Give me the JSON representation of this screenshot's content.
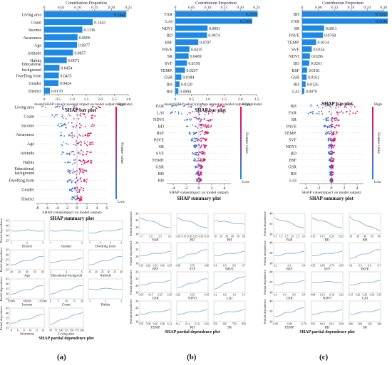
{
  "chart_data": [
    {
      "type": "bar",
      "panel": "a",
      "title": "SHAP bar plot",
      "top_axis_label": "Contribution Proportion",
      "top_ticks": [
        "0",
        "0.05",
        "0.10",
        "0.15",
        "0.20",
        "0.25"
      ],
      "top_max": 0.25,
      "bottom_ticks": [
        "0",
        "0.5",
        "1.0",
        "1.5",
        "2.0",
        "2.5",
        "3.0"
      ],
      "bottom_max": 3.0,
      "xlabel": "mean(|SHAP value|)  (average impact on model output magnitude)",
      "categories": [
        "Living area",
        "Count",
        "Income",
        "Awareness",
        "Age",
        "Attitude",
        "Habits",
        "Educational background",
        "Dwelling form",
        "Gender",
        "District"
      ],
      "values": [
        0.2442,
        0.1443,
        0.1136,
        0.099,
        0.0977,
        0.0857,
        0.0671,
        0.0454,
        0.0435,
        0.0424,
        0.017
      ],
      "value_labels": [
        "0.2442",
        "0.1443",
        "0.1136",
        "0.0990",
        "0.0977",
        "0.0857",
        "0.0671",
        "0.0454",
        "0.0435",
        "0.0424",
        "0.0170"
      ]
    },
    {
      "type": "bar",
      "panel": "b",
      "title": "SHAP bar plot",
      "top_axis_label": "Contribution Proportion",
      "top_ticks": [
        "0",
        "0.05",
        "0.10",
        "0.15",
        "0.20",
        "0.25"
      ],
      "top_max": 0.25,
      "bottom_ticks": [
        "0",
        "0.5",
        "1.0",
        "1.5",
        "2.0",
        "2.5"
      ],
      "bottom_max": 2.5,
      "xlabel": "mean(|SHAP value|)  (average impact on model output magnitude)",
      "categories": [
        "FAR",
        "LAI",
        "NDVI",
        "BD",
        "BSF",
        "PAVE",
        "SR",
        "SVF",
        "TEMP.",
        "GSR",
        "BH",
        "RH"
      ],
      "values": [
        0.2535,
        0.2366,
        0.0991,
        0.0974,
        0.0707,
        0.0435,
        0.0409,
        0.0358,
        0.0297,
        0.0184,
        0.0129,
        0.0094
      ],
      "value_labels": [
        "0.2535",
        "0.2366",
        "0.0991",
        "0.0974",
        "0.0707",
        "0.0435",
        "0.0409",
        "0.0358",
        "0.0297",
        "0.0184",
        "0.0129",
        "0.0094"
      ]
    },
    {
      "type": "bar",
      "panel": "c",
      "title": "SHAP bar plot",
      "top_axis_label": "Contribution Proportion",
      "top_ticks": [
        "0",
        "0.06",
        "0.12",
        "0.18",
        "0.24",
        "0.30"
      ],
      "top_max": 0.3,
      "bottom_ticks": [],
      "bottom_max": 0.3,
      "xlabel": "",
      "categories": [
        "BH",
        "FAR",
        "SR",
        "PAVE",
        "TEMP.",
        "SVF",
        "NDVI",
        "BD",
        "BSF",
        "GSR",
        "RH",
        "LAI"
      ],
      "values": [
        0.3262,
        0.3198,
        0.0811,
        0.0768,
        0.0514,
        0.0354,
        0.0286,
        0.0261,
        0.0181,
        0.0161,
        0.0126,
        0.0079
      ],
      "value_labels": [
        "0.3262",
        "0.3198",
        "0.0811",
        "0.0768",
        "0.0514",
        "0.0354",
        "0.0286",
        "0.0261",
        "0.0181",
        "0.0161",
        "0.0126",
        "0.0079"
      ]
    },
    {
      "type": "scatter",
      "panel": "a",
      "title": "SHAP summary plot",
      "xlabel": "SHAP value(impact on model output)",
      "x_ticks": [
        -8,
        -6,
        -4,
        -2,
        0,
        2,
        4,
        6
      ],
      "xlim": [
        -8,
        6
      ],
      "colorbar_label": "Feature value",
      "colorbar_high": "High",
      "colorbar_low": "Low",
      "features": [
        "Living area",
        "Count",
        "Income",
        "Awareness",
        "Age",
        "Attitude",
        "Habits",
        "Educational background",
        "Dwelling form",
        "Gender",
        "District"
      ],
      "spread": [
        [
          -7,
          5.5
        ],
        [
          -5,
          4
        ],
        [
          -4,
          3.5
        ],
        [
          -4,
          3
        ],
        [
          -3.5,
          3.5
        ],
        [
          -3,
          3
        ],
        [
          -2.5,
          3
        ],
        [
          -2,
          2
        ],
        [
          -2,
          2
        ],
        [
          -1.5,
          1.5
        ],
        [
          -1,
          1
        ]
      ]
    },
    {
      "type": "scatter",
      "panel": "b",
      "title": "SHAP summary plot",
      "xlabel": "SHAP value(impact on model output)",
      "x_ticks": [
        -4,
        -2,
        0,
        2,
        4
      ],
      "xlim": [
        -5,
        5
      ],
      "colorbar_label": "Feature value",
      "colorbar_high": "High",
      "colorbar_low": "Low",
      "features": [
        "FAR",
        "LAI",
        "NDVI",
        "BD",
        "BSF",
        "PAVE",
        "SR",
        "SVF",
        "TEMP.",
        "GSR",
        "BH",
        "RH"
      ],
      "spread": [
        [
          -4.5,
          4.5
        ],
        [
          -4.5,
          4
        ],
        [
          -2.5,
          2.5
        ],
        [
          -2,
          2
        ],
        [
          -1.5,
          1.5
        ],
        [
          -1.2,
          1.2
        ],
        [
          -1,
          1.2
        ],
        [
          -1,
          1
        ],
        [
          -1,
          1
        ],
        [
          -0.6,
          0.6
        ],
        [
          -0.5,
          0.5
        ],
        [
          -0.4,
          0.4
        ]
      ]
    },
    {
      "type": "scatter",
      "panel": "c",
      "title": "SHAP summary plot",
      "xlabel": "SHAP value(impact on model output)",
      "x_ticks": [
        -4,
        -2,
        0,
        2,
        4
      ],
      "xlim": [
        -5,
        5
      ],
      "colorbar_label": "Feature value",
      "colorbar_high": "High",
      "colorbar_low": "Low",
      "features": [
        "BH",
        "FAR",
        "SR",
        "PAVE",
        "TEMP.",
        "SVF",
        "NDVI",
        "BD",
        "BSF",
        "GSR",
        "RH",
        "LAI"
      ],
      "spread": [
        [
          -4.5,
          4
        ],
        [
          -4,
          4.5
        ],
        [
          -1.2,
          1.2
        ],
        [
          -1.2,
          1.2
        ],
        [
          -1,
          1
        ],
        [
          -0.6,
          0.6
        ],
        [
          -0.5,
          0.5
        ],
        [
          -0.5,
          0.5
        ],
        [
          -0.4,
          0.4
        ],
        [
          -0.3,
          0.3
        ],
        [
          -0.3,
          0.3
        ],
        [
          -0.2,
          0.2
        ]
      ]
    },
    {
      "type": "line",
      "panel": "a",
      "title": "SHAP partial dependence plot",
      "ylabel": "Partial dependence",
      "y_ticks": [
        [
          25,
          30,
          35,
          40,
          45
        ],
        [
          25,
          30,
          35,
          40,
          45
        ],
        [
          25,
          30,
          35,
          40,
          45
        ],
        [
          25,
          30,
          35,
          40,
          45
        ]
      ],
      "subplots": [
        {
          "xlabel": "District",
          "x_ticks": [
            "1",
            "2",
            "3"
          ],
          "trend": "flat"
        },
        {
          "xlabel": "Gender",
          "x_ticks": [
            "1",
            "2"
          ],
          "trend": "flat"
        },
        {
          "xlabel": "Dwelling form",
          "x_ticks": [
            "1",
            "2",
            "3",
            "4"
          ],
          "trend": "up-slight"
        },
        {
          "xlabel": "Age",
          "x_ticks": [
            "20",
            "30",
            "40",
            "50",
            "60"
          ],
          "trend": "up"
        },
        {
          "xlabel": "Educational backgroud",
          "x_ticks": [
            "2",
            "4",
            "6"
          ],
          "trend": "up-slight"
        },
        {
          "xlabel": "Attitude",
          "x_ticks": [
            "15",
            "20",
            "25",
            "30",
            "35",
            "40"
          ],
          "trend": "up"
        },
        {
          "xlabel": "Income",
          "x_ticks": [
            "50,000",
            "100,000",
            "150,000"
          ],
          "trend": "up"
        },
        {
          "xlabel": "Count",
          "x_ticks": [
            "0",
            "5",
            "10",
            "15",
            "20"
          ],
          "trend": "up"
        },
        {
          "xlabel": "Habits",
          "x_ticks": [
            "1",
            "2",
            "3"
          ],
          "trend": "flat"
        },
        {
          "xlabel": "Awareness",
          "x_ticks": [
            "4",
            "6",
            "8",
            "10",
            "12",
            "14"
          ],
          "trend": "up"
        },
        {
          "xlabel": "Living area",
          "x_ticks": [
            "50",
            "75",
            "100",
            "125",
            "150",
            "175",
            "200"
          ],
          "trend": "up-steep"
        }
      ]
    },
    {
      "type": "line",
      "panel": "b",
      "title": "SHAP partial dependence plot",
      "ylabel": "Partial dependence",
      "y_ticks": [
        [
          18,
          20,
          22,
          24
        ],
        [
          18,
          20,
          22,
          24
        ],
        [
          18,
          20,
          22,
          24
        ],
        [
          18,
          20,
          22,
          24
        ]
      ],
      "subplots": [
        {
          "xlabel": "FAR",
          "x_ticks": [
            "1.5",
            "2.0",
            "2.5",
            "3.0"
          ],
          "trend": "down"
        },
        {
          "xlabel": "BD",
          "x_ticks": [
            "0.10",
            "0.15",
            "0.20",
            "0.25",
            "0.30",
            "0.35"
          ],
          "trend": "down"
        },
        {
          "xlabel": "BH",
          "x_ticks": [
            "10",
            "20",
            "30",
            "40",
            "50",
            "60"
          ],
          "trend": "down-slight"
        },
        {
          "xlabel": "BSF",
          "x_ticks": [
            "0.15",
            "0.20",
            "0.25",
            "0.30",
            "0.35"
          ],
          "trend": "up-slight"
        },
        {
          "xlabel": "SVF",
          "x_ticks": [
            "0.60",
            "0.70",
            "0.80"
          ],
          "trend": "up"
        },
        {
          "xlabel": "PAVE",
          "x_ticks": [
            "0.4",
            "0.5",
            "0.6",
            "0.7"
          ],
          "trend": "up-slight"
        },
        {
          "xlabel": "GSR",
          "x_ticks": [
            "0.05",
            "0.15",
            "0.25",
            "0.35"
          ],
          "trend": "up-slight"
        },
        {
          "xlabel": "NDVI",
          "x_ticks": [
            "0.25",
            "0.35",
            "0.45"
          ],
          "trend": "up"
        },
        {
          "xlabel": "LAI",
          "x_ticks": [
            "0.2",
            "0.6",
            "1.0",
            "1.4"
          ],
          "trend": "up-steep"
        },
        {
          "xlabel": "TEMP.",
          "x_ticks": [
            "5.95",
            "5.98",
            "6.05",
            "6.09",
            "6.13"
          ],
          "trend": "up-slight"
        },
        {
          "xlabel": "RH",
          "x_ticks": [
            "61.2",
            "61.4",
            "61.6",
            "62.0"
          ],
          "trend": "up-slight"
        },
        {
          "xlabel": "SR",
          "x_ticks": [
            "550",
            "650",
            "750",
            "850"
          ],
          "trend": "up-slight"
        }
      ]
    },
    {
      "type": "line",
      "panel": "c",
      "title": "SHAP partial dependence plot",
      "ylabel": "Partial dependence",
      "y_ticks": [
        [
          30,
          35,
          40
        ],
        [
          30,
          35,
          40
        ],
        [
          30,
          35,
          40
        ],
        [
          30,
          35,
          40
        ]
      ],
      "subplots": [
        {
          "xlabel": "FAR",
          "x_ticks": [
            "0.5",
            "1.0",
            "1.5",
            "2.0",
            "2.5",
            "3.0"
          ],
          "trend": "down"
        },
        {
          "xlabel": "BD",
          "x_ticks": [
            "0.10",
            "0.15",
            "0.20",
            "0.25"
          ],
          "trend": "down"
        },
        {
          "xlabel": "BH",
          "x_ticks": [
            "20",
            "30",
            "40",
            "50",
            "60"
          ],
          "trend": "down-steep"
        },
        {
          "xlabel": "BSF",
          "x_ticks": [
            "0.2",
            "0.3",
            "0.4"
          ],
          "trend": "up-slight"
        },
        {
          "xlabel": "SVF",
          "x_ticks": [
            "0.55",
            "0.65",
            "0.75",
            "0.85"
          ],
          "trend": "up-slight"
        },
        {
          "xlabel": "PAVE",
          "x_ticks": [
            "0.4",
            "0.5",
            "0.6",
            "0.7"
          ],
          "trend": "up"
        },
        {
          "xlabel": "GSR",
          "x_ticks": [
            "0.2",
            "0.4",
            "0.6",
            "0.8"
          ],
          "trend": "up-slight"
        },
        {
          "xlabel": "NDVI",
          "x_ticks": [
            "0.08",
            "0.13",
            "0.18",
            "0.23"
          ],
          "trend": "flat"
        },
        {
          "xlabel": "LAI",
          "x_ticks": [
            "0.15",
            "0.20",
            "0.25",
            "0.30",
            "0.35"
          ],
          "trend": "up-slight"
        },
        {
          "xlabel": "TEMP.",
          "x_ticks": [
            "-6.90",
            "-6.80",
            "-6.70"
          ],
          "trend": "up"
        },
        {
          "xlabel": "RH",
          "x_ticks": [
            "59.6",
            "60.0",
            "60.4",
            "60.8"
          ],
          "trend": "up-slight"
        },
        {
          "xlabel": "SR",
          "x_ticks": [
            "280",
            "300",
            "320",
            "340"
          ],
          "trend": "up-slight"
        }
      ]
    }
  ],
  "panel_letters": [
    "(a)",
    "(b)",
    "(c)"
  ],
  "colors": {
    "bar": "#1e88e5",
    "low": "#1e88e5",
    "high": "#ff0052",
    "line": "#7aa6cf"
  }
}
